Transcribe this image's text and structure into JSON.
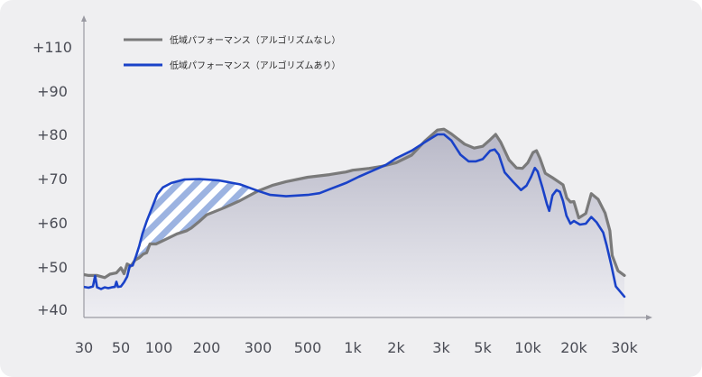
{
  "chart_data": {
    "type": "line",
    "x_scale": "log",
    "y_ticks": [
      "+110",
      "+90",
      "+80",
      "+70",
      "+60",
      "+50",
      "+40"
    ],
    "x_ticks": [
      "30",
      "50",
      "100",
      "200",
      "300",
      "500",
      "1k",
      "2k",
      "3k",
      "5k",
      "10k",
      "20k",
      "30k"
    ],
    "series": [
      {
        "name": "低域パフォーマンス（アルゴリズムなし）",
        "color": "#7a7a7a",
        "points": [
          [
            30,
            48.2
          ],
          [
            32,
            48.0
          ],
          [
            36,
            48.0
          ],
          [
            40,
            47.5
          ],
          [
            43,
            48.3
          ],
          [
            47,
            48.6
          ],
          [
            50,
            49.8
          ],
          [
            53,
            48.4
          ],
          [
            56,
            50.7
          ],
          [
            60,
            50.2
          ],
          [
            65,
            51.6
          ],
          [
            70,
            52.1
          ],
          [
            75,
            52.9
          ],
          [
            80,
            53.2
          ],
          [
            85,
            55.2
          ],
          [
            95,
            55.2
          ],
          [
            110,
            56.2
          ],
          [
            130,
            57.5
          ],
          [
            150,
            58.2
          ],
          [
            160,
            58.8
          ],
          [
            180,
            60.3
          ],
          [
            200,
            61.8
          ],
          [
            230,
            63.4
          ],
          [
            260,
            65.0
          ],
          [
            300,
            67.2
          ],
          [
            350,
            68.5
          ],
          [
            400,
            69.3
          ],
          [
            500,
            70.3
          ],
          [
            700,
            70.9
          ],
          [
            900,
            71.5
          ],
          [
            1000,
            71.9
          ],
          [
            1300,
            72.3
          ],
          [
            1600,
            72.8
          ],
          [
            2000,
            73.6
          ],
          [
            2300,
            75.3
          ],
          [
            2600,
            78.6
          ],
          [
            2900,
            81.0
          ],
          [
            3100,
            81.2
          ],
          [
            3400,
            80.1
          ],
          [
            4000,
            77.8
          ],
          [
            4500,
            76.9
          ],
          [
            5000,
            77.3
          ],
          [
            5600,
            78.8
          ],
          [
            6100,
            80.0
          ],
          [
            6600,
            78.2
          ],
          [
            7500,
            74.2
          ],
          [
            8400,
            72.4
          ],
          [
            9200,
            72.3
          ],
          [
            10000,
            73.6
          ],
          [
            10800,
            75.9
          ],
          [
            11400,
            76.3
          ],
          [
            12000,
            74.6
          ],
          [
            13000,
            71.2
          ],
          [
            14500,
            70.2
          ],
          [
            16000,
            69.2
          ],
          [
            17000,
            68.6
          ],
          [
            18000,
            65.6
          ],
          [
            19000,
            64.7
          ],
          [
            20000,
            64.8
          ],
          [
            20800,
            61.1
          ],
          [
            22000,
            62.1
          ],
          [
            23000,
            66.6
          ],
          [
            24300,
            65.3
          ],
          [
            25700,
            62.2
          ],
          [
            26700,
            58.2
          ],
          [
            27200,
            52.6
          ],
          [
            28500,
            49.1
          ],
          [
            30000,
            48.0
          ]
        ]
      },
      {
        "name": "低域パフォーマンス（アルゴリズムあり）",
        "color": "#1a42c8",
        "points": [
          [
            30,
            45.3
          ],
          [
            32,
            45.1
          ],
          [
            34,
            45.4
          ],
          [
            35,
            47.9
          ],
          [
            36,
            45.2
          ],
          [
            38,
            44.8
          ],
          [
            40,
            45.2
          ],
          [
            42,
            45.0
          ],
          [
            44,
            45.2
          ],
          [
            46,
            45.3
          ],
          [
            47,
            46.5
          ],
          [
            48,
            45.3
          ],
          [
            50,
            45.4
          ],
          [
            53,
            46.4
          ],
          [
            56,
            47.7
          ],
          [
            59,
            50.3
          ],
          [
            62,
            50.3
          ],
          [
            66,
            52.5
          ],
          [
            70,
            54.8
          ],
          [
            74,
            57.5
          ],
          [
            80,
            60.3
          ],
          [
            88,
            63.3
          ],
          [
            97,
            66.4
          ],
          [
            106,
            68.0
          ],
          [
            120,
            69.0
          ],
          [
            145,
            69.8
          ],
          [
            180,
            69.9
          ],
          [
            220,
            69.6
          ],
          [
            260,
            68.7
          ],
          [
            300,
            67.2
          ],
          [
            340,
            66.3
          ],
          [
            400,
            66.0
          ],
          [
            500,
            66.3
          ],
          [
            600,
            66.7
          ],
          [
            700,
            67.6
          ],
          [
            900,
            69.0
          ],
          [
            1100,
            70.4
          ],
          [
            1400,
            71.9
          ],
          [
            1700,
            73.1
          ],
          [
            2000,
            74.6
          ],
          [
            2300,
            76.3
          ],
          [
            2600,
            78.3
          ],
          [
            2900,
            80.0
          ],
          [
            3100,
            80.0
          ],
          [
            3400,
            78.6
          ],
          [
            3800,
            75.4
          ],
          [
            4200,
            73.9
          ],
          [
            4600,
            73.9
          ],
          [
            5000,
            74.4
          ],
          [
            5600,
            76.3
          ],
          [
            6000,
            76.6
          ],
          [
            6400,
            75.4
          ],
          [
            7000,
            71.4
          ],
          [
            8000,
            69.2
          ],
          [
            9000,
            67.4
          ],
          [
            9800,
            68.4
          ],
          [
            10500,
            70.4
          ],
          [
            11100,
            72.4
          ],
          [
            11600,
            71.6
          ],
          [
            12500,
            67.8
          ],
          [
            13300,
            64.3
          ],
          [
            13800,
            62.7
          ],
          [
            14500,
            66.2
          ],
          [
            15400,
            67.4
          ],
          [
            16200,
            67.0
          ],
          [
            17000,
            64.9
          ],
          [
            17900,
            61.6
          ],
          [
            19000,
            59.8
          ],
          [
            20000,
            60.4
          ],
          [
            21000,
            59.6
          ],
          [
            22000,
            59.8
          ],
          [
            23000,
            61.3
          ],
          [
            24000,
            60.1
          ],
          [
            25300,
            57.8
          ],
          [
            26000,
            55.0
          ],
          [
            27000,
            50.5
          ],
          [
            28000,
            45.4
          ],
          [
            30000,
            43.0
          ]
        ]
      }
    ]
  }
}
